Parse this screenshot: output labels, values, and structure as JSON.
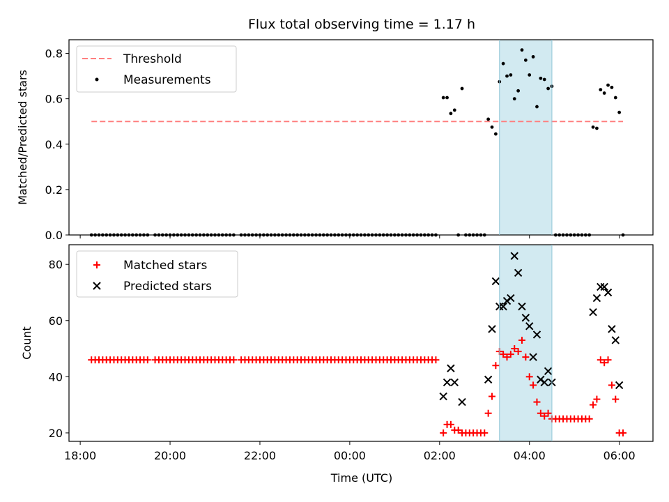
{
  "figure": {
    "title": "Flux total observing time = 1.17 h",
    "xlabel": "Time (UTC)"
  },
  "chart_data": [
    {
      "type": "scatter",
      "ylabel": "Matched/Predicted stars",
      "ylim": [
        0,
        0.86
      ],
      "yticks": [
        0.0,
        0.2,
        0.4,
        0.6,
        0.8
      ],
      "ytick_labels": [
        "0.0",
        "0.2",
        "0.4",
        "0.6",
        "0.8"
      ],
      "legend": {
        "position": "top-left",
        "entries": [
          {
            "name": "Threshold",
            "marker": "dashed-line",
            "color": "#ff7f7f"
          },
          {
            "name": "Measurements",
            "marker": "dot",
            "color": "#000000"
          }
        ]
      },
      "threshold": {
        "value": 0.5,
        "x_start": "18:15",
        "x_end": "06:05",
        "color": "#ff7f7f"
      },
      "measurements": [
        [
          "18:15",
          0
        ],
        [
          "18:20",
          0
        ],
        [
          "18:25",
          0
        ],
        [
          "18:30",
          0
        ],
        [
          "18:35",
          0
        ],
        [
          "18:40",
          0
        ],
        [
          "18:45",
          0
        ],
        [
          "18:50",
          0
        ],
        [
          "18:55",
          0
        ],
        [
          "19:00",
          0
        ],
        [
          "19:05",
          0
        ],
        [
          "19:10",
          0
        ],
        [
          "19:15",
          0
        ],
        [
          "19:20",
          0
        ],
        [
          "19:25",
          0
        ],
        [
          "19:30",
          0
        ],
        [
          "19:40",
          0
        ],
        [
          "19:45",
          0
        ],
        [
          "19:50",
          0
        ],
        [
          "19:55",
          0
        ],
        [
          "20:00",
          0
        ],
        [
          "20:05",
          0
        ],
        [
          "20:10",
          0
        ],
        [
          "20:15",
          0
        ],
        [
          "20:20",
          0
        ],
        [
          "20:25",
          0
        ],
        [
          "20:30",
          0
        ],
        [
          "20:35",
          0
        ],
        [
          "20:40",
          0
        ],
        [
          "20:45",
          0
        ],
        [
          "20:50",
          0
        ],
        [
          "20:55",
          0
        ],
        [
          "21:00",
          0
        ],
        [
          "21:05",
          0
        ],
        [
          "21:10",
          0
        ],
        [
          "21:15",
          0
        ],
        [
          "21:20",
          0
        ],
        [
          "21:25",
          0
        ],
        [
          "21:35",
          0
        ],
        [
          "21:40",
          0
        ],
        [
          "21:45",
          0
        ],
        [
          "21:50",
          0
        ],
        [
          "21:55",
          0
        ],
        [
          "22:00",
          0
        ],
        [
          "22:05",
          0
        ],
        [
          "22:10",
          0
        ],
        [
          "22:15",
          0
        ],
        [
          "22:20",
          0
        ],
        [
          "22:25",
          0
        ],
        [
          "22:30",
          0
        ],
        [
          "22:35",
          0
        ],
        [
          "22:40",
          0
        ],
        [
          "22:45",
          0
        ],
        [
          "22:50",
          0
        ],
        [
          "22:55",
          0
        ],
        [
          "23:00",
          0
        ],
        [
          "23:05",
          0
        ],
        [
          "23:10",
          0
        ],
        [
          "23:15",
          0
        ],
        [
          "23:20",
          0
        ],
        [
          "23:25",
          0
        ],
        [
          "23:30",
          0
        ],
        [
          "23:35",
          0
        ],
        [
          "23:40",
          0
        ],
        [
          "23:45",
          0
        ],
        [
          "23:50",
          0
        ],
        [
          "23:55",
          0
        ],
        [
          "00:00",
          0
        ],
        [
          "00:05",
          0
        ],
        [
          "00:10",
          0
        ],
        [
          "00:15",
          0
        ],
        [
          "00:20",
          0
        ],
        [
          "00:25",
          0
        ],
        [
          "00:30",
          0
        ],
        [
          "00:35",
          0
        ],
        [
          "00:40",
          0
        ],
        [
          "00:45",
          0
        ],
        [
          "00:50",
          0
        ],
        [
          "00:55",
          0
        ],
        [
          "01:00",
          0
        ],
        [
          "01:05",
          0
        ],
        [
          "01:10",
          0
        ],
        [
          "01:15",
          0
        ],
        [
          "01:20",
          0
        ],
        [
          "01:25",
          0
        ],
        [
          "01:30",
          0
        ],
        [
          "01:35",
          0
        ],
        [
          "01:40",
          0
        ],
        [
          "01:45",
          0
        ],
        [
          "01:50",
          0
        ],
        [
          "01:55",
          0
        ],
        [
          "02:05",
          0.605
        ],
        [
          "02:10",
          0.605
        ],
        [
          "02:15",
          0.535
        ],
        [
          "02:20",
          0.55
        ],
        [
          "02:25",
          0
        ],
        [
          "02:30",
          0.645
        ],
        [
          "02:35",
          0
        ],
        [
          "02:40",
          0
        ],
        [
          "02:45",
          0
        ],
        [
          "02:50",
          0
        ],
        [
          "02:55",
          0
        ],
        [
          "03:00",
          0
        ],
        [
          "03:05",
          0.51
        ],
        [
          "03:10",
          0.475
        ],
        [
          "03:15",
          0.445
        ],
        [
          "03:20",
          0.675
        ],
        [
          "03:25",
          0.755
        ],
        [
          "03:30",
          0.7
        ],
        [
          "03:35",
          0.705
        ],
        [
          "03:40",
          0.6
        ],
        [
          "03:45",
          0.635
        ],
        [
          "03:50",
          0.815
        ],
        [
          "03:55",
          0.77
        ],
        [
          "04:00",
          0.705
        ],
        [
          "04:05",
          0.785
        ],
        [
          "04:10",
          0.565
        ],
        [
          "04:15",
          0.69
        ],
        [
          "04:20",
          0.685
        ],
        [
          "04:25",
          0.645
        ],
        [
          "04:30",
          0.655
        ],
        [
          "04:35",
          0
        ],
        [
          "04:40",
          0
        ],
        [
          "04:45",
          0
        ],
        [
          "04:50",
          0
        ],
        [
          "04:55",
          0
        ],
        [
          "05:00",
          0
        ],
        [
          "05:05",
          0
        ],
        [
          "05:10",
          0
        ],
        [
          "05:15",
          0
        ],
        [
          "05:20",
          0
        ],
        [
          "05:25",
          0.475
        ],
        [
          "05:30",
          0.47
        ],
        [
          "05:35",
          0.64
        ],
        [
          "05:40",
          0.625
        ],
        [
          "05:45",
          0.66
        ],
        [
          "05:50",
          0.65
        ],
        [
          "05:55",
          0.605
        ],
        [
          "06:00",
          0.54
        ],
        [
          "06:05",
          0
        ]
      ]
    },
    {
      "type": "scatter",
      "ylabel": "Count",
      "ylim": [
        17,
        87
      ],
      "yticks": [
        20,
        40,
        60,
        80
      ],
      "ytick_labels": [
        "20",
        "40",
        "60",
        "80"
      ],
      "legend": {
        "position": "top-left",
        "entries": [
          {
            "name": "Matched stars",
            "marker": "plus",
            "color": "#ff0000"
          },
          {
            "name": "Predicted stars",
            "marker": "x",
            "color": "#000000"
          }
        ]
      },
      "matched": [
        [
          "18:15",
          46
        ],
        [
          "18:20",
          46
        ],
        [
          "18:25",
          46
        ],
        [
          "18:30",
          46
        ],
        [
          "18:35",
          46
        ],
        [
          "18:40",
          46
        ],
        [
          "18:45",
          46
        ],
        [
          "18:50",
          46
        ],
        [
          "18:55",
          46
        ],
        [
          "19:00",
          46
        ],
        [
          "19:05",
          46
        ],
        [
          "19:10",
          46
        ],
        [
          "19:15",
          46
        ],
        [
          "19:20",
          46
        ],
        [
          "19:25",
          46
        ],
        [
          "19:30",
          46
        ],
        [
          "19:40",
          46
        ],
        [
          "19:45",
          46
        ],
        [
          "19:50",
          46
        ],
        [
          "19:55",
          46
        ],
        [
          "20:00",
          46
        ],
        [
          "20:05",
          46
        ],
        [
          "20:10",
          46
        ],
        [
          "20:15",
          46
        ],
        [
          "20:20",
          46
        ],
        [
          "20:25",
          46
        ],
        [
          "20:30",
          46
        ],
        [
          "20:35",
          46
        ],
        [
          "20:40",
          46
        ],
        [
          "20:45",
          46
        ],
        [
          "20:50",
          46
        ],
        [
          "20:55",
          46
        ],
        [
          "21:00",
          46
        ],
        [
          "21:05",
          46
        ],
        [
          "21:10",
          46
        ],
        [
          "21:15",
          46
        ],
        [
          "21:20",
          46
        ],
        [
          "21:25",
          46
        ],
        [
          "21:35",
          46
        ],
        [
          "21:40",
          46
        ],
        [
          "21:45",
          46
        ],
        [
          "21:50",
          46
        ],
        [
          "21:55",
          46
        ],
        [
          "22:00",
          46
        ],
        [
          "22:05",
          46
        ],
        [
          "22:10",
          46
        ],
        [
          "22:15",
          46
        ],
        [
          "22:20",
          46
        ],
        [
          "22:25",
          46
        ],
        [
          "22:30",
          46
        ],
        [
          "22:35",
          46
        ],
        [
          "22:40",
          46
        ],
        [
          "22:45",
          46
        ],
        [
          "22:50",
          46
        ],
        [
          "22:55",
          46
        ],
        [
          "23:00",
          46
        ],
        [
          "23:05",
          46
        ],
        [
          "23:10",
          46
        ],
        [
          "23:15",
          46
        ],
        [
          "23:20",
          46
        ],
        [
          "23:25",
          46
        ],
        [
          "23:30",
          46
        ],
        [
          "23:35",
          46
        ],
        [
          "23:40",
          46
        ],
        [
          "23:45",
          46
        ],
        [
          "23:50",
          46
        ],
        [
          "23:55",
          46
        ],
        [
          "00:00",
          46
        ],
        [
          "00:05",
          46
        ],
        [
          "00:10",
          46
        ],
        [
          "00:15",
          46
        ],
        [
          "00:20",
          46
        ],
        [
          "00:25",
          46
        ],
        [
          "00:30",
          46
        ],
        [
          "00:35",
          46
        ],
        [
          "00:40",
          46
        ],
        [
          "00:45",
          46
        ],
        [
          "00:50",
          46
        ],
        [
          "00:55",
          46
        ],
        [
          "01:00",
          46
        ],
        [
          "01:05",
          46
        ],
        [
          "01:10",
          46
        ],
        [
          "01:15",
          46
        ],
        [
          "01:20",
          46
        ],
        [
          "01:25",
          46
        ],
        [
          "01:30",
          46
        ],
        [
          "01:35",
          46
        ],
        [
          "01:40",
          46
        ],
        [
          "01:45",
          46
        ],
        [
          "01:50",
          46
        ],
        [
          "01:55",
          46
        ],
        [
          "02:05",
          20
        ],
        [
          "02:10",
          23
        ],
        [
          "02:15",
          23
        ],
        [
          "02:20",
          21
        ],
        [
          "02:25",
          21
        ],
        [
          "02:30",
          20
        ],
        [
          "02:35",
          20
        ],
        [
          "02:40",
          20
        ],
        [
          "02:45",
          20
        ],
        [
          "02:50",
          20
        ],
        [
          "02:55",
          20
        ],
        [
          "03:00",
          20
        ],
        [
          "03:05",
          27
        ],
        [
          "03:10",
          33
        ],
        [
          "03:15",
          44
        ],
        [
          "03:20",
          49
        ],
        [
          "03:25",
          48
        ],
        [
          "03:30",
          47
        ],
        [
          "03:35",
          48
        ],
        [
          "03:40",
          50
        ],
        [
          "03:45",
          49
        ],
        [
          "03:50",
          53
        ],
        [
          "03:55",
          47
        ],
        [
          "04:00",
          40
        ],
        [
          "04:05",
          37
        ],
        [
          "04:10",
          31
        ],
        [
          "04:15",
          27
        ],
        [
          "04:20",
          26
        ],
        [
          "04:25",
          27
        ],
        [
          "04:30",
          25
        ],
        [
          "04:35",
          25
        ],
        [
          "04:40",
          25
        ],
        [
          "04:45",
          25
        ],
        [
          "04:50",
          25
        ],
        [
          "04:55",
          25
        ],
        [
          "05:00",
          25
        ],
        [
          "05:05",
          25
        ],
        [
          "05:10",
          25
        ],
        [
          "05:15",
          25
        ],
        [
          "05:20",
          25
        ],
        [
          "05:25",
          30
        ],
        [
          "05:30",
          32
        ],
        [
          "05:35",
          46
        ],
        [
          "05:40",
          45
        ],
        [
          "05:45",
          46
        ],
        [
          "05:50",
          37
        ],
        [
          "05:55",
          32
        ],
        [
          "06:00",
          20
        ],
        [
          "06:05",
          20
        ]
      ],
      "predicted": [
        [
          "02:05",
          33
        ],
        [
          "02:10",
          38
        ],
        [
          "02:15",
          43
        ],
        [
          "02:20",
          38
        ],
        [
          "02:30",
          31
        ],
        [
          "03:05",
          39
        ],
        [
          "03:10",
          57
        ],
        [
          "03:15",
          74
        ],
        [
          "03:20",
          65
        ],
        [
          "03:25",
          65
        ],
        [
          "03:30",
          67
        ],
        [
          "03:35",
          68
        ],
        [
          "03:40",
          83
        ],
        [
          "03:45",
          77
        ],
        [
          "03:50",
          65
        ],
        [
          "03:55",
          61
        ],
        [
          "04:00",
          58
        ],
        [
          "04:05",
          47
        ],
        [
          "04:10",
          55
        ],
        [
          "04:15",
          39
        ],
        [
          "04:20",
          38
        ],
        [
          "04:25",
          42
        ],
        [
          "04:30",
          38
        ],
        [
          "05:25",
          63
        ],
        [
          "05:30",
          68
        ],
        [
          "05:35",
          72
        ],
        [
          "05:40",
          72
        ],
        [
          "05:45",
          70
        ],
        [
          "05:50",
          57
        ],
        [
          "05:55",
          53
        ],
        [
          "06:00",
          37
        ]
      ]
    }
  ],
  "shaded_region": {
    "x_start": "03:20",
    "x_end": "04:30",
    "color": "#add8e6"
  },
  "x_axis": {
    "start": "17:45",
    "end": "06:45",
    "ticks": [
      "18:00",
      "20:00",
      "22:00",
      "00:00",
      "02:00",
      "04:00",
      "06:00"
    ],
    "tick_labels": [
      "18:00",
      "20:00",
      "22:00",
      "00:00",
      "02:00",
      "04:00",
      "06:00"
    ]
  }
}
